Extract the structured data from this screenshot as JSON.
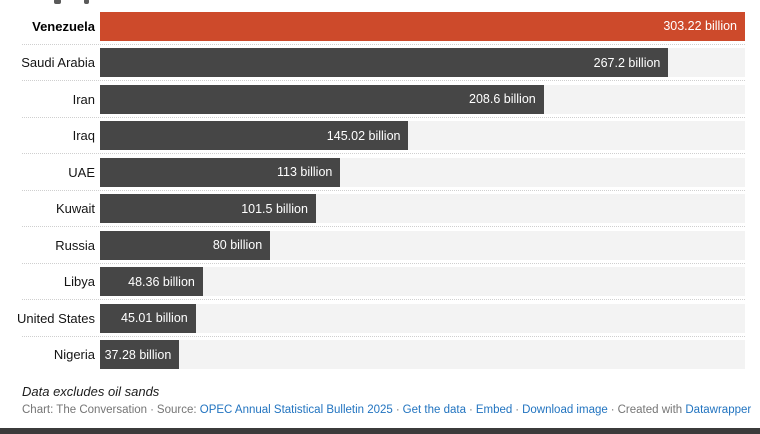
{
  "chart_data": {
    "type": "bar",
    "orientation": "horizontal",
    "categories": [
      "Venezuela",
      "Saudi Arabia",
      "Iran",
      "Iraq",
      "UAE",
      "Kuwait",
      "Russia",
      "Libya",
      "United States",
      "Nigeria"
    ],
    "values": [
      303.22,
      267.2,
      208.6,
      145.02,
      113,
      101.5,
      80,
      48.36,
      45.01,
      37.28
    ],
    "value_labels": [
      "303.22 billion",
      "267.2 billion",
      "208.6 billion",
      "145.02 billion",
      "113 billion",
      "101.5 billion",
      "80 billion",
      "48.36 billion",
      "45.01 billion",
      "37.28 billion"
    ],
    "xlim": [
      0,
      303.22
    ],
    "highlight_index": 0,
    "grid": "off",
    "legend": "none",
    "colors": {
      "highlight_bar": "#cd4a2b",
      "default_bar": "#464646",
      "track": "#f3f3f3",
      "value_text": "#ffffff",
      "separator_dots": "#cfcfcf"
    }
  },
  "footnote": "Data excludes oil sands",
  "attribution": {
    "chart_credit": "Chart: The Conversation",
    "separator": "·",
    "source_label": "Source:",
    "source_link": "OPEC Annual Statistical Bulletin 2025",
    "get_data_link": "Get the data",
    "embed_link": "Embed",
    "download_image_link": "Download image",
    "created_with": "Created with",
    "created_with_link": "Datawrapper",
    "link_color": "#2274c0"
  }
}
